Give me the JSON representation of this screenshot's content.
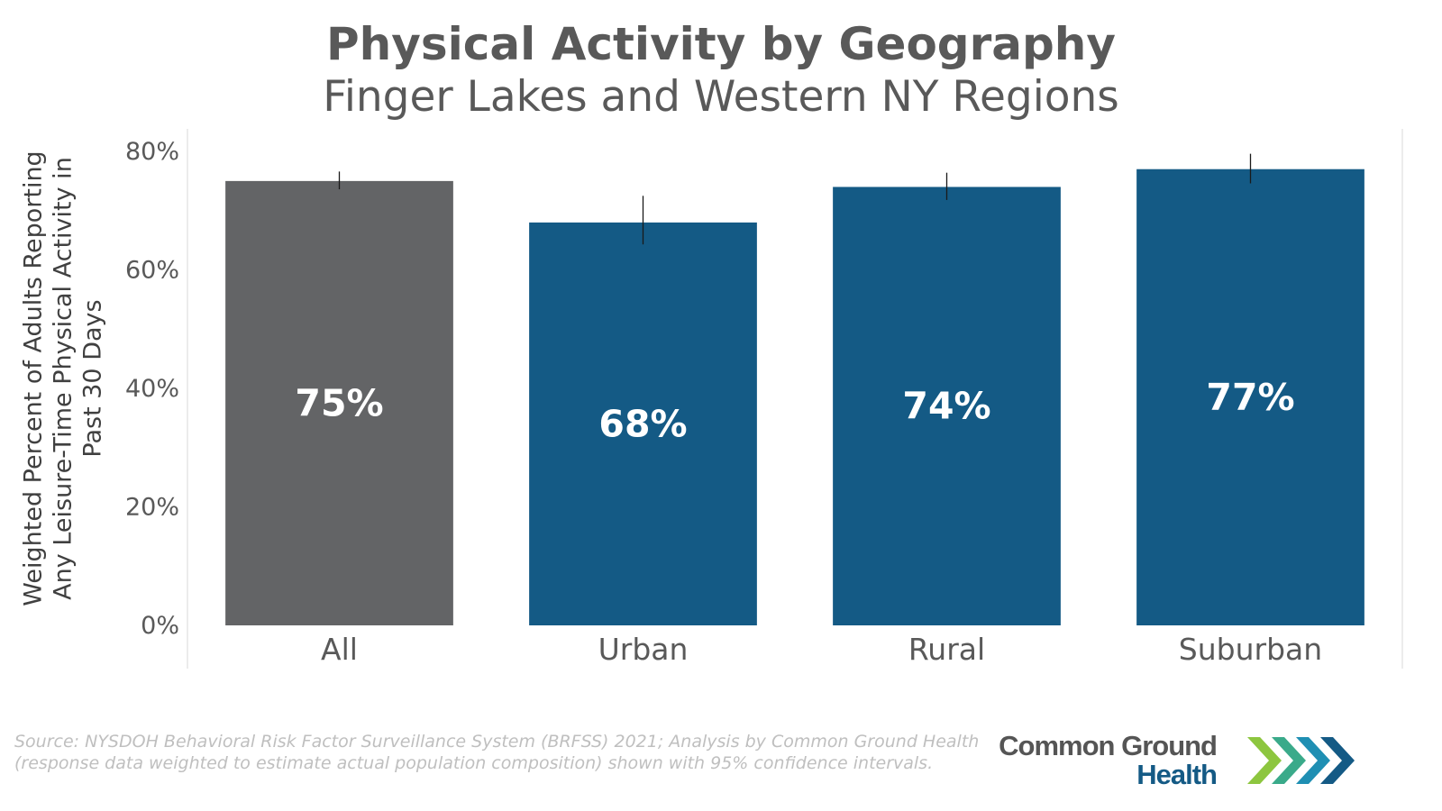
{
  "chart_data": {
    "type": "bar",
    "title": "Physical Activity by Geography",
    "subtitle": "Finger Lakes and Western NY Regions",
    "ylabel": "Weighted Percent of Adults Reporting\nAny Leisure-Time Physical Activity in\nPast 30 Days",
    "xlabel": "",
    "ylim": [
      0,
      0.8
    ],
    "y_ticks": [
      {
        "value": 0,
        "label": "0%"
      },
      {
        "value": 0.2,
        "label": "20%"
      },
      {
        "value": 0.4,
        "label": "40%"
      },
      {
        "value": 0.6,
        "label": "60%"
      },
      {
        "value": 0.8,
        "label": "80%"
      }
    ],
    "categories": [
      "All",
      "Urban",
      "Rural",
      "Suburban"
    ],
    "values": [
      0.75,
      0.68,
      0.74,
      0.77
    ],
    "value_labels": [
      "75%",
      "68%",
      "74%",
      "77%"
    ],
    "error_bars": [
      {
        "low": 0.736,
        "high": 0.766
      },
      {
        "low": 0.643,
        "high": 0.725
      },
      {
        "low": 0.718,
        "high": 0.764
      },
      {
        "low": 0.746,
        "high": 0.796
      }
    ],
    "error_bars_note": "95% confidence intervals",
    "colors": [
      "#636466",
      "#145a85",
      "#145a85",
      "#145a85"
    ],
    "grid": false,
    "legend": "none"
  },
  "footer": {
    "source": "Source: NYSDOH Behavioral Risk Factor Surveillance System (BRFSS) 2021; Analysis by Common Ground Health (response data weighted to estimate actual population composition) shown with 95% confidence intervals."
  },
  "logo": {
    "line1": "Common Ground",
    "line2": "Health",
    "chevron_colors": [
      "#8dc63f",
      "#3aaa8a",
      "#1f8fb3",
      "#145a85"
    ]
  }
}
